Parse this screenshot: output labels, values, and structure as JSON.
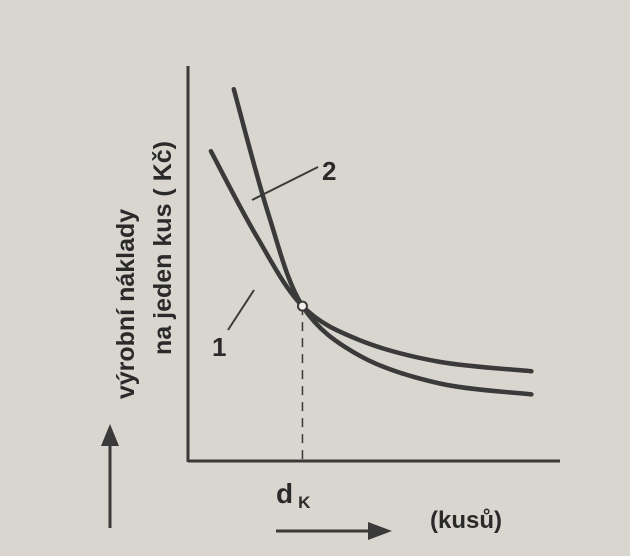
{
  "chart_data": {
    "type": "line",
    "ylabel_line1": "výrobní náklady",
    "ylabel_line2": "na jeden kus ( Kč)",
    "xlabel": "(kusů)",
    "x_marker_main": "d",
    "x_marker_sub": "K",
    "grid": false,
    "series": [
      {
        "name": "1",
        "x": [
          0.2,
          0.6,
          1.0,
          1.5,
          2.2,
          3.0
        ],
        "y": [
          2.0,
          1.45,
          1.0,
          0.78,
          0.64,
          0.58
        ]
      },
      {
        "name": "2",
        "x": [
          0.4,
          0.7,
          1.0,
          1.5,
          2.2,
          3.0
        ],
        "y": [
          2.4,
          1.6,
          1.0,
          0.68,
          0.5,
          0.43
        ]
      }
    ],
    "intersection": {
      "x": 1.0,
      "y": 1.0
    },
    "colors": {
      "line": "#3a3a3a",
      "background": "#d8d6cf",
      "text": "#2a2a2a"
    }
  }
}
